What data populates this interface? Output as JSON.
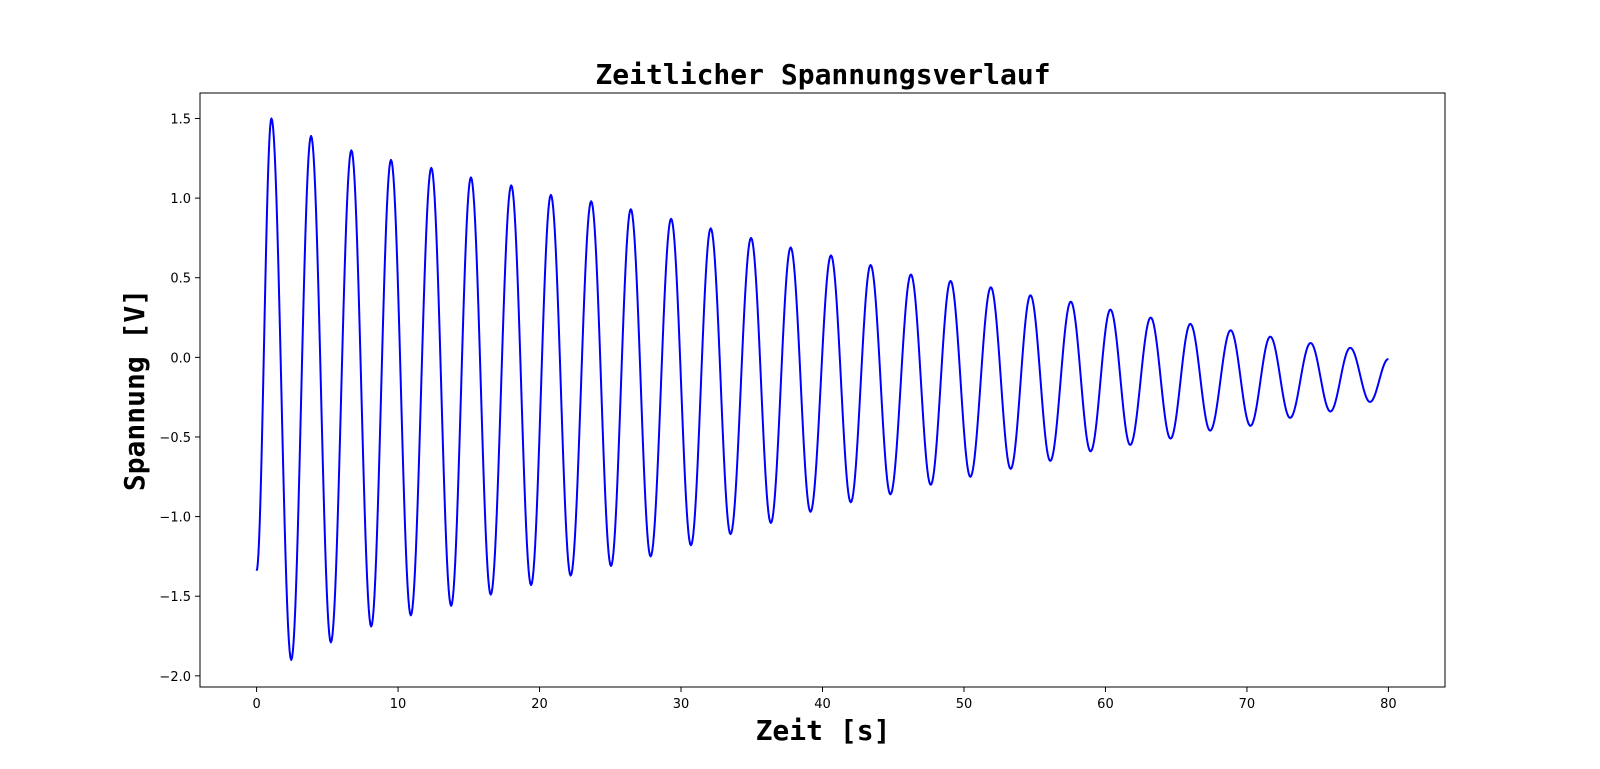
{
  "chart_data": {
    "type": "line",
    "title": "Zeitlicher Spannungsverlauf",
    "xlabel": "Zeit [s]",
    "ylabel": "Spannung [V]",
    "xlim": [
      -4,
      84
    ],
    "ylim": [
      -2.07,
      1.66
    ],
    "xticks": [
      0,
      10,
      20,
      30,
      40,
      50,
      60,
      70,
      80
    ],
    "xtick_labels": [
      "0",
      "10",
      "20",
      "30",
      "40",
      "50",
      "60",
      "70",
      "80"
    ],
    "yticks": [
      -2.0,
      -1.5,
      -1.0,
      -0.5,
      0.0,
      0.5,
      1.0,
      1.5
    ],
    "ytick_labels": [
      "−2.0",
      "−1.5",
      "−1.0",
      "−0.5",
      "0.0",
      "0.5",
      "1.0",
      "1.5"
    ],
    "grid": false,
    "series": [
      {
        "color": "#0000ff",
        "x_start": 0,
        "x_end": 80,
        "extrema": [
          [
            0.0,
            -1.34
          ],
          [
            1.05,
            1.5
          ],
          [
            2.45,
            -1.9
          ],
          [
            3.85,
            1.39
          ],
          [
            5.25,
            -1.79
          ],
          [
            6.7,
            1.3
          ],
          [
            8.1,
            -1.69
          ],
          [
            9.5,
            1.24
          ],
          [
            10.9,
            -1.62
          ],
          [
            12.35,
            1.19
          ],
          [
            13.75,
            -1.56
          ],
          [
            15.15,
            1.13
          ],
          [
            16.55,
            -1.49
          ],
          [
            18.0,
            1.08
          ],
          [
            19.4,
            -1.43
          ],
          [
            20.8,
            1.02
          ],
          [
            22.2,
            -1.37
          ],
          [
            23.65,
            0.98
          ],
          [
            25.05,
            -1.31
          ],
          [
            26.45,
            0.93
          ],
          [
            27.85,
            -1.25
          ],
          [
            29.3,
            0.87
          ],
          [
            30.7,
            -1.18
          ],
          [
            32.1,
            0.81
          ],
          [
            33.5,
            -1.11
          ],
          [
            34.95,
            0.75
          ],
          [
            36.35,
            -1.04
          ],
          [
            37.75,
            0.69
          ],
          [
            39.15,
            -0.97
          ],
          [
            40.6,
            0.64
          ],
          [
            42.0,
            -0.91
          ],
          [
            43.4,
            0.58
          ],
          [
            44.8,
            -0.86
          ],
          [
            46.25,
            0.52
          ],
          [
            47.65,
            -0.8
          ],
          [
            49.05,
            0.48
          ],
          [
            50.45,
            -0.75
          ],
          [
            51.9,
            0.44
          ],
          [
            53.3,
            -0.7
          ],
          [
            54.7,
            0.39
          ],
          [
            56.1,
            -0.65
          ],
          [
            57.55,
            0.35
          ],
          [
            58.95,
            -0.59
          ],
          [
            60.35,
            0.3
          ],
          [
            61.75,
            -0.55
          ],
          [
            63.2,
            0.25
          ],
          [
            64.6,
            -0.51
          ],
          [
            66.0,
            0.21
          ],
          [
            67.4,
            -0.46
          ],
          [
            68.85,
            0.17
          ],
          [
            70.25,
            -0.43
          ],
          [
            71.65,
            0.13
          ],
          [
            73.05,
            -0.38
          ],
          [
            74.5,
            0.09
          ],
          [
            75.9,
            -0.34
          ],
          [
            77.3,
            0.06
          ],
          [
            78.7,
            -0.28
          ],
          [
            80.0,
            -0.01
          ]
        ]
      }
    ]
  }
}
